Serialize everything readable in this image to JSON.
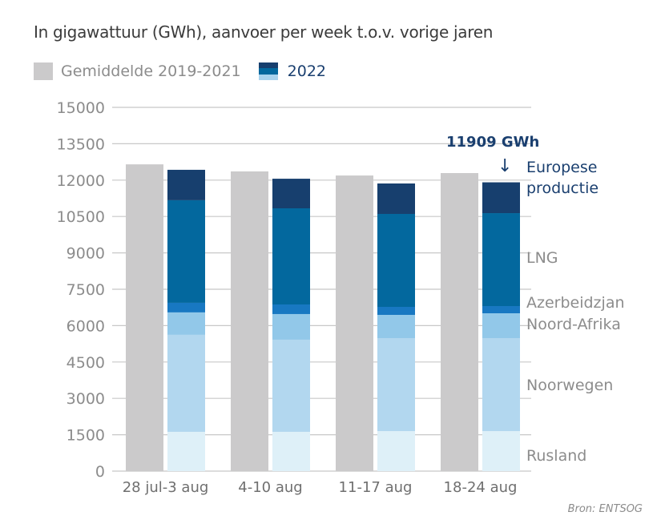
{
  "chart_data": {
    "type": "bar",
    "subtype": "grouped-stacked",
    "title": "In gigawattuur (GWh), aanvoer per week t.o.v. vorige jaren",
    "xlabel": "",
    "ylabel": "",
    "ylim": [
      0,
      15000
    ],
    "yticks": [
      0,
      1500,
      3000,
      4500,
      6000,
      7500,
      9000,
      10500,
      12000,
      13500,
      15000
    ],
    "grid": true,
    "legend_position": "top-left",
    "legend": [
      {
        "label": "Gemiddelde 2019-2021",
        "color": "#cbcacb"
      },
      {
        "label": "2022",
        "colors": [
          "#173f6e",
          "#03689e",
          "#a8d3ee"
        ]
      }
    ],
    "categories": [
      "28 jul-3 aug",
      "4-10 aug",
      "11-17 aug",
      "18-24 aug"
    ],
    "average": {
      "name": "Gemiddelde 2019-2021",
      "color": "#cbcacb",
      "values": [
        12650,
        12360,
        12190,
        12290
      ]
    },
    "series_2022": [
      {
        "name": "Rusland",
        "color": "#def0f8",
        "values": [
          1620,
          1620,
          1650,
          1650
        ]
      },
      {
        "name": "Noorwegen",
        "color": "#b2d7ef",
        "values": [
          4000,
          3800,
          3835,
          3835
        ]
      },
      {
        "name": "Noord-Afrika",
        "color": "#92c8e9",
        "values": [
          925,
          1057,
          958,
          1024
        ]
      },
      {
        "name": "Azerbeidzjan",
        "color": "#1878c2",
        "values": [
          395,
          395,
          330,
          297
        ]
      },
      {
        "name": "LNG",
        "color": "#03689e",
        "values": [
          4230,
          3965,
          3833,
          3832
        ]
      },
      {
        "name": "Europese productie",
        "color": "#173f6e",
        "values": [
          1255,
          1220,
          1255,
          1271
        ]
      }
    ],
    "totals_2022": [
      12425,
      12057,
      11861,
      11909
    ],
    "annotations": [
      {
        "text": "11909 GWh",
        "category": "18-24 aug",
        "arrow": "↓"
      }
    ],
    "side_labels": [
      "Europese productie",
      "LNG",
      "Azerbeidzjan",
      "Noord-Afrika",
      "Noorwegen",
      "Rusland"
    ],
    "source": "Bron: ENTSOG"
  },
  "legend": {
    "avg_label": "Gemiddelde 2019-2021",
    "y2022_label": "2022"
  },
  "annotation": {
    "value": "11909 GWh",
    "arrow": "↓"
  },
  "side": {
    "ep1": "Europese",
    "ep2": "productie",
    "lng": "LNG",
    "az": "Azerbeidzjan",
    "na": "Noord-Afrika",
    "no": "Noorwegen",
    "ru": "Rusland"
  }
}
